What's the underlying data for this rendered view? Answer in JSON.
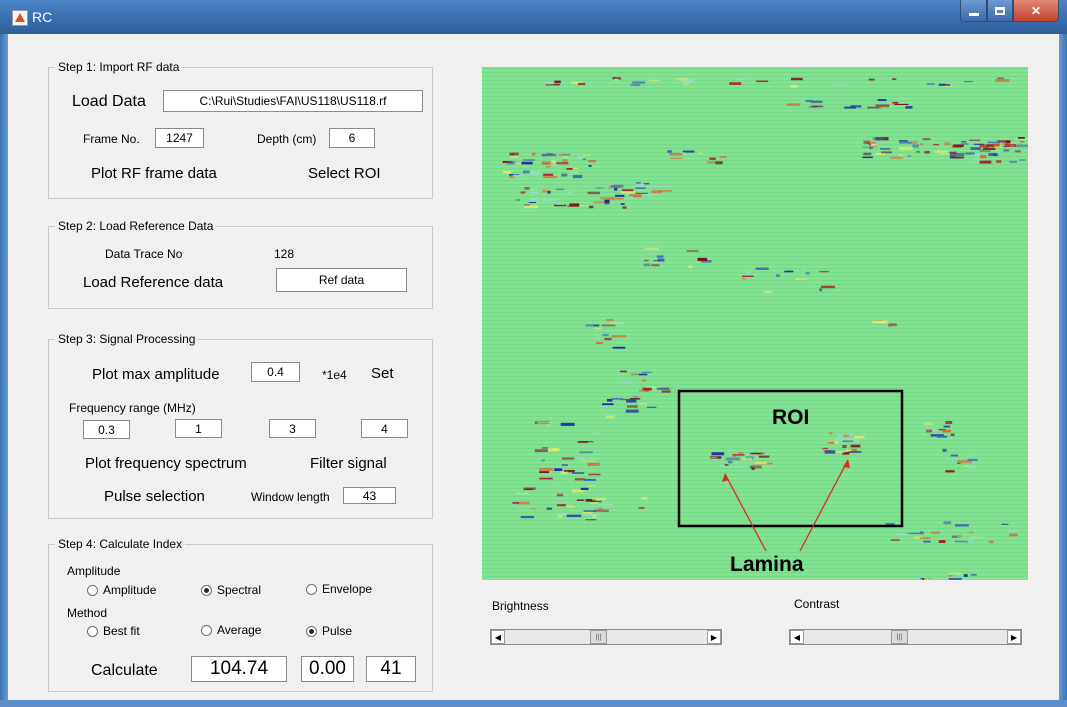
{
  "window": {
    "title": "RC"
  },
  "step1": {
    "title": "Step 1: Import RF data",
    "load_label": "Load Data",
    "file_path": "C:\\Rui\\Studies\\FAI\\US118\\US118.rf",
    "frame_label": "Frame No.",
    "frame_value": "1247",
    "depth_label": "Depth (cm)",
    "depth_value": "6",
    "plot_label": "Plot RF frame data",
    "roi_label": "Select ROI"
  },
  "step2": {
    "title": "Step 2: Load Reference Data",
    "trace_label": "Data Trace No",
    "trace_value": "128",
    "load_ref_label": "Load Reference data",
    "ref_value": "Ref data"
  },
  "step3": {
    "title": "Step 3: Signal Processing",
    "max_amp_label": "Plot max amplitude",
    "max_amp_value": "0.4",
    "unit": "*1e4",
    "set_label": "Set",
    "freq_label": "Frequency range (MHz)",
    "freq_values": [
      "0.3",
      "1",
      "3",
      "4"
    ],
    "spectrum_label": "Plot frequency spectrum",
    "filter_label": "Filter signal",
    "pulse_label": "Pulse selection",
    "window_label": "Window length",
    "window_value": "43"
  },
  "step4": {
    "title": "Step 4: Calculate Index",
    "amplitude_group": "Amplitude",
    "amp_options": [
      "Amplitude",
      "Spectral",
      "Envelope"
    ],
    "amp_selected": "Spectral",
    "method_group": "Method",
    "method_options": [
      "Best fit",
      "Average",
      "Pulse"
    ],
    "method_selected": "Pulse",
    "calc_label": "Calculate",
    "results": [
      "104.74",
      "0.00",
      "41"
    ]
  },
  "image": {
    "roi_label": "ROI",
    "lamina_label": "Lamina",
    "background_color": "#7fe08a",
    "annotation_color": "#e02a1a"
  },
  "sliders": {
    "brightness_label": "Brightness",
    "contrast_label": "Contrast",
    "brightness_value": 0.46,
    "contrast_value": 0.47
  }
}
